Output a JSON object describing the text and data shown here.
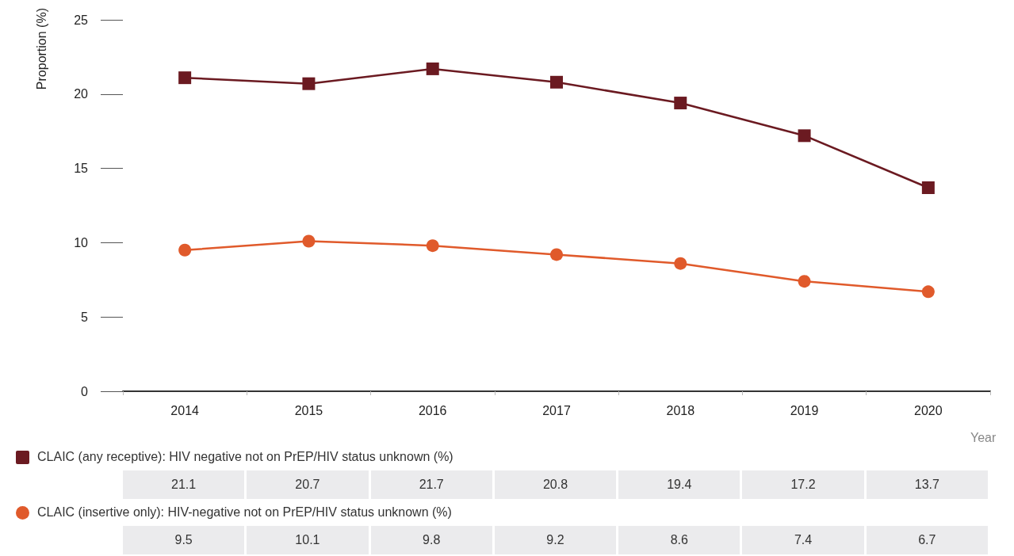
{
  "chart_data": {
    "type": "line",
    "ylabel": "Proportion (%)",
    "xlabel": "Year",
    "categories": [
      "2014",
      "2015",
      "2016",
      "2017",
      "2018",
      "2019",
      "2020"
    ],
    "series": [
      {
        "name": "CLAIC (any receptive): HIV negative not on PrEP/HIV status unknown (%)",
        "color": "#6b1a21",
        "marker": "square",
        "values": [
          21.1,
          20.7,
          21.7,
          20.8,
          19.4,
          17.2,
          13.7
        ]
      },
      {
        "name": "CLAIC (insertive only): HIV-negative not on PrEP/HIV status unknown (%)",
        "color": "#e05a2b",
        "marker": "circle",
        "values": [
          9.5,
          10.1,
          9.8,
          9.2,
          8.6,
          7.4,
          6.7
        ]
      }
    ],
    "ylim": [
      0,
      25
    ],
    "yticks": [
      0,
      5,
      10,
      15,
      20,
      25
    ],
    "grid": false,
    "legend": "bottom",
    "data_labels": true
  }
}
